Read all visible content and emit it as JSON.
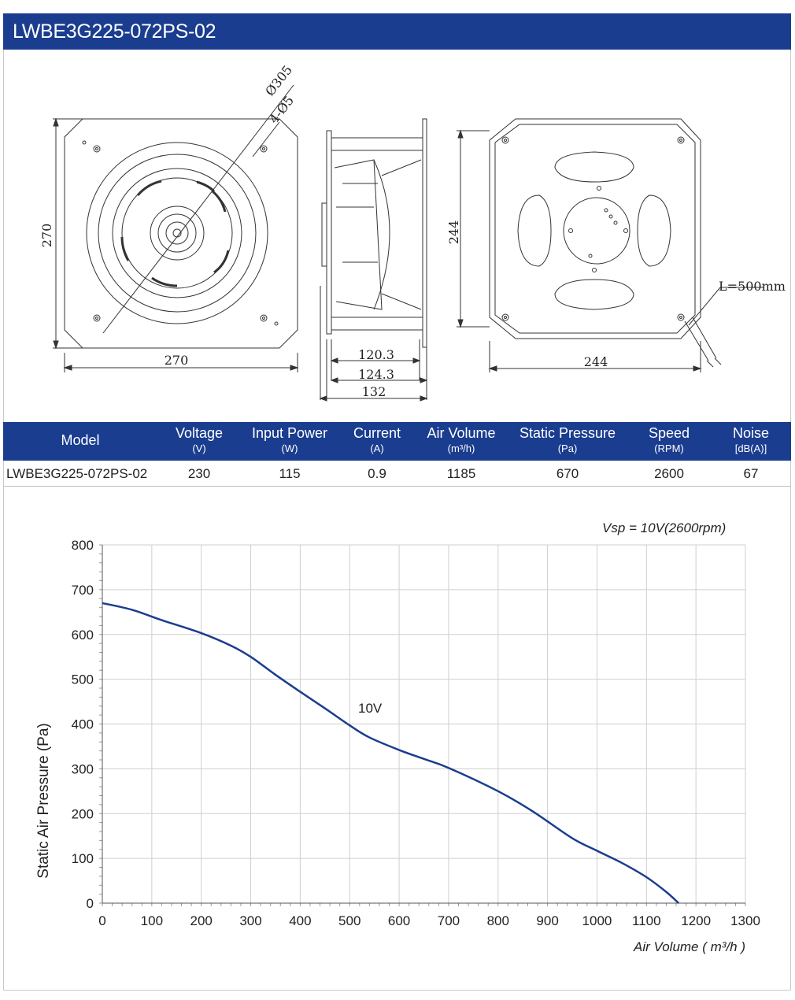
{
  "title": "LWBE3G225-072PS-02",
  "drawing": {
    "front_view": {
      "diameter": "Ø305",
      "holes": "4-Ø5",
      "height": "270",
      "width": "270"
    },
    "side_view": {
      "dim1": "120.3",
      "dim2": "124.3",
      "dim3": "132"
    },
    "rear_view": {
      "height": "244",
      "width": "244",
      "cable": "L=500mm"
    }
  },
  "spec_table": {
    "headers": [
      {
        "label": "Model",
        "unit": ""
      },
      {
        "label": "Voltage",
        "unit": "(V)"
      },
      {
        "label": "Input Power",
        "unit": "(W)"
      },
      {
        "label": "Current",
        "unit": "(A)"
      },
      {
        "label": "Air Volume",
        "unit": "(m³/h)"
      },
      {
        "label": "Static Pressure",
        "unit": "(Pa)"
      },
      {
        "label": "Speed",
        "unit": "(RPM)"
      },
      {
        "label": "Noise",
        "unit": "[dB(A)]"
      }
    ],
    "row": [
      "LWBE3G225-072PS-02",
      "230",
      "115",
      "0.9",
      "1185",
      "670",
      "2600",
      "67"
    ]
  },
  "colors": {
    "header_bg": "#1a3d8f",
    "curve": "#1a3d8f",
    "grid": "#cfcfcf"
  },
  "chart_data": {
    "type": "line",
    "title": "",
    "annotation": "Vsp = 10V(2600rpm)",
    "xlabel": "Air Volume ( m³/h )",
    "ylabel": "Static Air Pressure  (Pa)",
    "xlim": [
      0,
      1300
    ],
    "ylim": [
      0,
      800
    ],
    "x_ticks": [
      0,
      100,
      200,
      300,
      400,
      500,
      600,
      700,
      800,
      900,
      1000,
      1100,
      1200,
      1300
    ],
    "y_ticks": [
      0,
      100,
      200,
      300,
      400,
      500,
      600,
      700,
      800
    ],
    "grid": true,
    "series": [
      {
        "name": "10V",
        "x": [
          0,
          60,
          120,
          200,
          260,
          300,
          350,
          400,
          450,
          500,
          540,
          600,
          650,
          700,
          800,
          870,
          950,
          1000,
          1050,
          1100,
          1140,
          1165
        ],
        "y": [
          670,
          655,
          632,
          603,
          575,
          550,
          510,
          472,
          435,
          397,
          370,
          342,
          322,
          302,
          250,
          205,
          145,
          117,
          90,
          58,
          25,
          0
        ]
      }
    ]
  }
}
